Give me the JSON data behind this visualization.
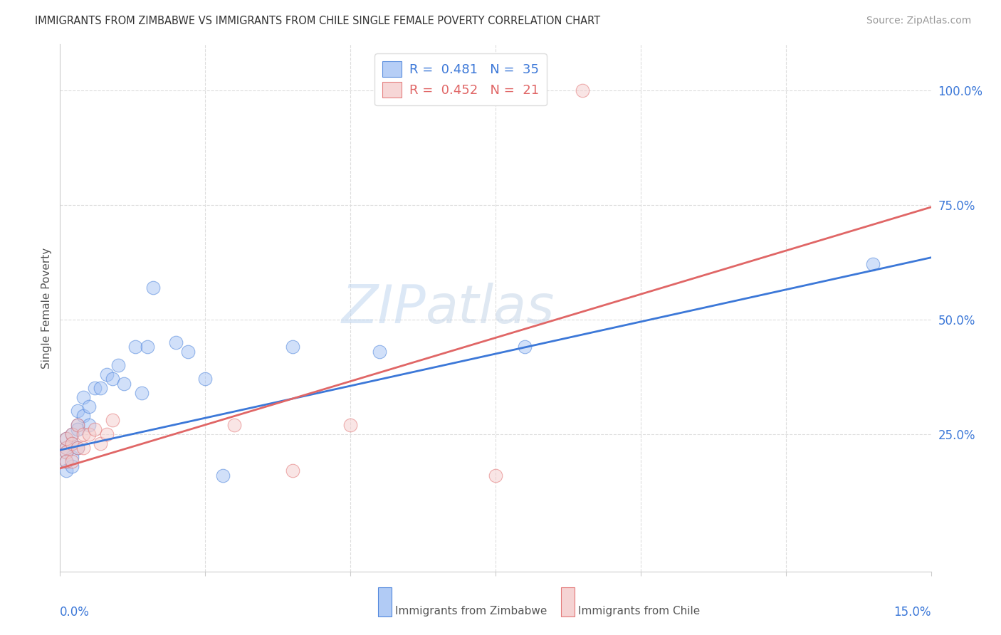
{
  "title": "IMMIGRANTS FROM ZIMBABWE VS IMMIGRANTS FROM CHILE SINGLE FEMALE POVERTY CORRELATION CHART",
  "source": "Source: ZipAtlas.com",
  "ylabel": "Single Female Poverty",
  "ylabel_right_labels": [
    "100.0%",
    "75.0%",
    "50.0%",
    "25.0%"
  ],
  "ylabel_right_values": [
    1.0,
    0.75,
    0.5,
    0.25
  ],
  "xmin": 0.0,
  "xmax": 0.15,
  "ymin": -0.05,
  "ymax": 1.1,
  "color_zimbabwe": "#a4c2f4",
  "color_chile": "#f4cccc",
  "color_zimbabwe_line": "#3c78d8",
  "color_chile_line": "#e06666",
  "watermark": "ZIPatlas",
  "legend_label_zimbabwe": "Immigrants from Zimbabwe",
  "legend_label_chile": "Immigrants from Chile",
  "zimbabwe_x": [
    0.001,
    0.001,
    0.001,
    0.001,
    0.001,
    0.002,
    0.002,
    0.002,
    0.002,
    0.003,
    0.003,
    0.003,
    0.003,
    0.004,
    0.004,
    0.005,
    0.005,
    0.006,
    0.007,
    0.008,
    0.009,
    0.01,
    0.011,
    0.013,
    0.014,
    0.015,
    0.016,
    0.02,
    0.022,
    0.025,
    0.028,
    0.04,
    0.055,
    0.08,
    0.14
  ],
  "zimbabwe_y": [
    0.22,
    0.24,
    0.21,
    0.19,
    0.17,
    0.25,
    0.23,
    0.2,
    0.18,
    0.27,
    0.3,
    0.26,
    0.22,
    0.33,
    0.29,
    0.31,
    0.27,
    0.35,
    0.35,
    0.38,
    0.37,
    0.4,
    0.36,
    0.44,
    0.34,
    0.44,
    0.57,
    0.45,
    0.43,
    0.37,
    0.16,
    0.44,
    0.43,
    0.44,
    0.62
  ],
  "chile_x": [
    0.001,
    0.001,
    0.001,
    0.001,
    0.002,
    0.002,
    0.002,
    0.003,
    0.003,
    0.004,
    0.004,
    0.005,
    0.006,
    0.007,
    0.008,
    0.009,
    0.03,
    0.04,
    0.05,
    0.075,
    0.09
  ],
  "chile_y": [
    0.22,
    0.24,
    0.21,
    0.19,
    0.25,
    0.23,
    0.19,
    0.27,
    0.22,
    0.25,
    0.22,
    0.25,
    0.26,
    0.23,
    0.25,
    0.28,
    0.27,
    0.17,
    0.27,
    0.16,
    1.0
  ],
  "zim_line_x": [
    0.0,
    0.15
  ],
  "zim_line_y": [
    0.215,
    0.635
  ],
  "chi_line_x": [
    0.0,
    0.15
  ],
  "chi_line_y": [
    0.175,
    0.745
  ]
}
